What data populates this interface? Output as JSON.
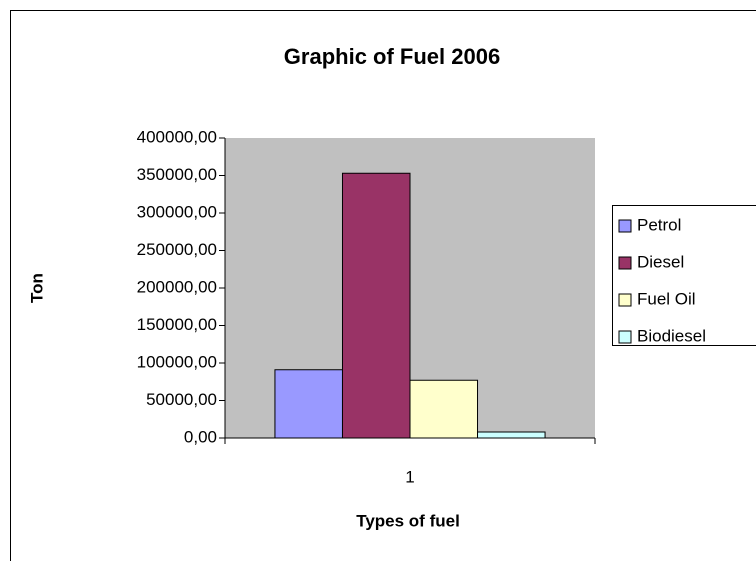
{
  "chart_data": {
    "type": "bar",
    "title": "Graphic of Fuel 2006",
    "x_label": "Types of fuel",
    "y_label": "Ton",
    "categories": [
      "1"
    ],
    "series": [
      {
        "name": "Petrol",
        "color": "#9999ff",
        "values": [
          91000
        ]
      },
      {
        "name": "Diesel",
        "color": "#993366",
        "values": [
          353000
        ]
      },
      {
        "name": "Fuel Oil",
        "color": "#ffffcc",
        "values": [
          77000
        ]
      },
      {
        "name": "Biodiesel",
        "color": "#ccffff",
        "values": [
          8000
        ]
      }
    ],
    "ylim": [
      0,
      400000
    ],
    "yticks": [
      {
        "value": 0,
        "label": "0,00"
      },
      {
        "value": 50000,
        "label": "50000,00"
      },
      {
        "value": 100000,
        "label": "100000,00"
      },
      {
        "value": 150000,
        "label": "150000,00"
      },
      {
        "value": 200000,
        "label": "200000,00"
      },
      {
        "value": 250000,
        "label": "250000,00"
      },
      {
        "value": 300000,
        "label": "300000,00"
      },
      {
        "value": 350000,
        "label": "350000,00"
      },
      {
        "value": 400000,
        "label": "400000,00"
      }
    ],
    "grid": false,
    "legend": "right"
  }
}
